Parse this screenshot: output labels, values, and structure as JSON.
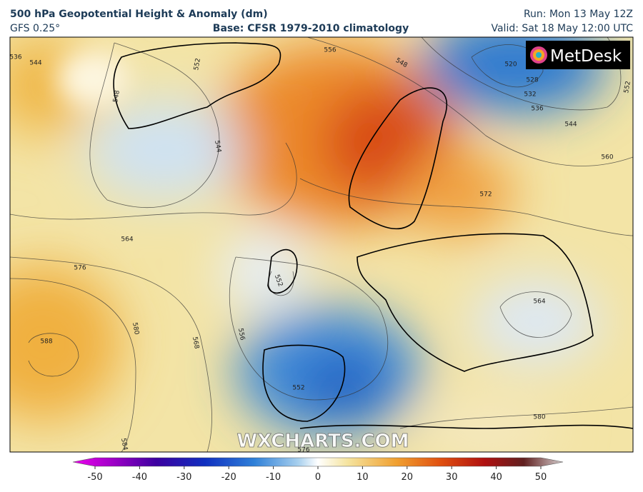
{
  "header": {
    "title": "500 hPa Geopotential Height & Anomaly (dm)",
    "model": "GFS 0.25°",
    "base": "Base: CFSR 1979-2010 climatology",
    "run": "Run: Mon 13 May 12Z",
    "valid": "Valid: Sat 18 May 12:00 UTC"
  },
  "logo": "MetDesk",
  "watermark": "WXCHARTS.COM",
  "contour_labels": [
    "536",
    "544",
    "552",
    "548",
    "556",
    "548",
    "520",
    "528",
    "532",
    "536",
    "544",
    "552",
    "560",
    "544",
    "572",
    "564",
    "576",
    "580",
    "588",
    "584",
    "568",
    "556",
    "552",
    "552",
    "564",
    "580",
    "576"
  ],
  "colorbar": {
    "ticks": [
      -50,
      -40,
      -30,
      -20,
      -10,
      0,
      10,
      20,
      30,
      40,
      50
    ]
  }
}
